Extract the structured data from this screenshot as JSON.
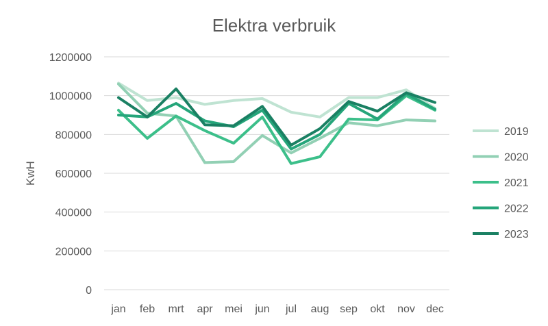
{
  "chart_data": {
    "type": "line",
    "title": "Elektra verbruik",
    "xlabel": "",
    "ylabel": "KwH",
    "categories": [
      "jan",
      "feb",
      "mrt",
      "apr",
      "mei",
      "jun",
      "jul",
      "aug",
      "sep",
      "okt",
      "nov",
      "dec"
    ],
    "ylim": [
      0,
      1200000
    ],
    "yticks": [
      0,
      200000,
      400000,
      600000,
      800000,
      1000000,
      1200000
    ],
    "grid": true,
    "legend_position": "right",
    "series": [
      {
        "name": "2019",
        "color": "#bfe3d2",
        "values": [
          1065000,
          975000,
          990000,
          955000,
          975000,
          985000,
          915000,
          890000,
          990000,
          990000,
          1030000,
          935000
        ]
      },
      {
        "name": "2020",
        "color": "#92d0b4",
        "values": [
          1060000,
          910000,
          895000,
          655000,
          660000,
          795000,
          705000,
          780000,
          860000,
          845000,
          875000,
          870000
        ]
      },
      {
        "name": "2021",
        "color": "#3cbf8a",
        "values": [
          925000,
          780000,
          895000,
          820000,
          755000,
          890000,
          650000,
          685000,
          880000,
          875000,
          1000000,
          925000
        ]
      },
      {
        "name": "2022",
        "color": "#25a57a",
        "values": [
          900000,
          890000,
          960000,
          870000,
          840000,
          925000,
          725000,
          800000,
          960000,
          880000,
          1010000,
          930000
        ]
      },
      {
        "name": "2023",
        "color": "#1a8063",
        "values": [
          990000,
          890000,
          1035000,
          850000,
          845000,
          945000,
          745000,
          830000,
          970000,
          920000,
          1015000,
          965000
        ]
      }
    ]
  }
}
